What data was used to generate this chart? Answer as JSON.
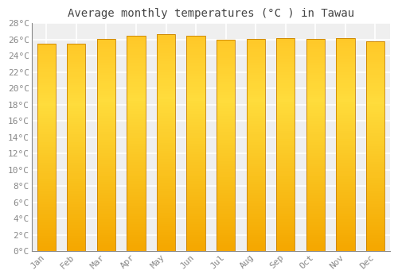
{
  "months": [
    "Jan",
    "Feb",
    "Mar",
    "Apr",
    "May",
    "Jun",
    "Jul",
    "Aug",
    "Sep",
    "Oct",
    "Nov",
    "Dec"
  ],
  "values": [
    25.5,
    25.5,
    26.1,
    26.4,
    26.6,
    26.4,
    26.0,
    26.1,
    26.2,
    26.1,
    26.2,
    25.8
  ],
  "title": "Average monthly temperatures (°C ) in Tawau",
  "ylim": [
    0,
    28
  ],
  "ytick_step": 2,
  "background_color": "#ffffff",
  "plot_bg_color": "#efefef",
  "grid_color": "#ffffff",
  "title_fontsize": 10,
  "tick_fontsize": 8,
  "bar_color_light": "#FFD84D",
  "bar_color_dark": "#F5A800",
  "bar_edge_color": "#C88000"
}
